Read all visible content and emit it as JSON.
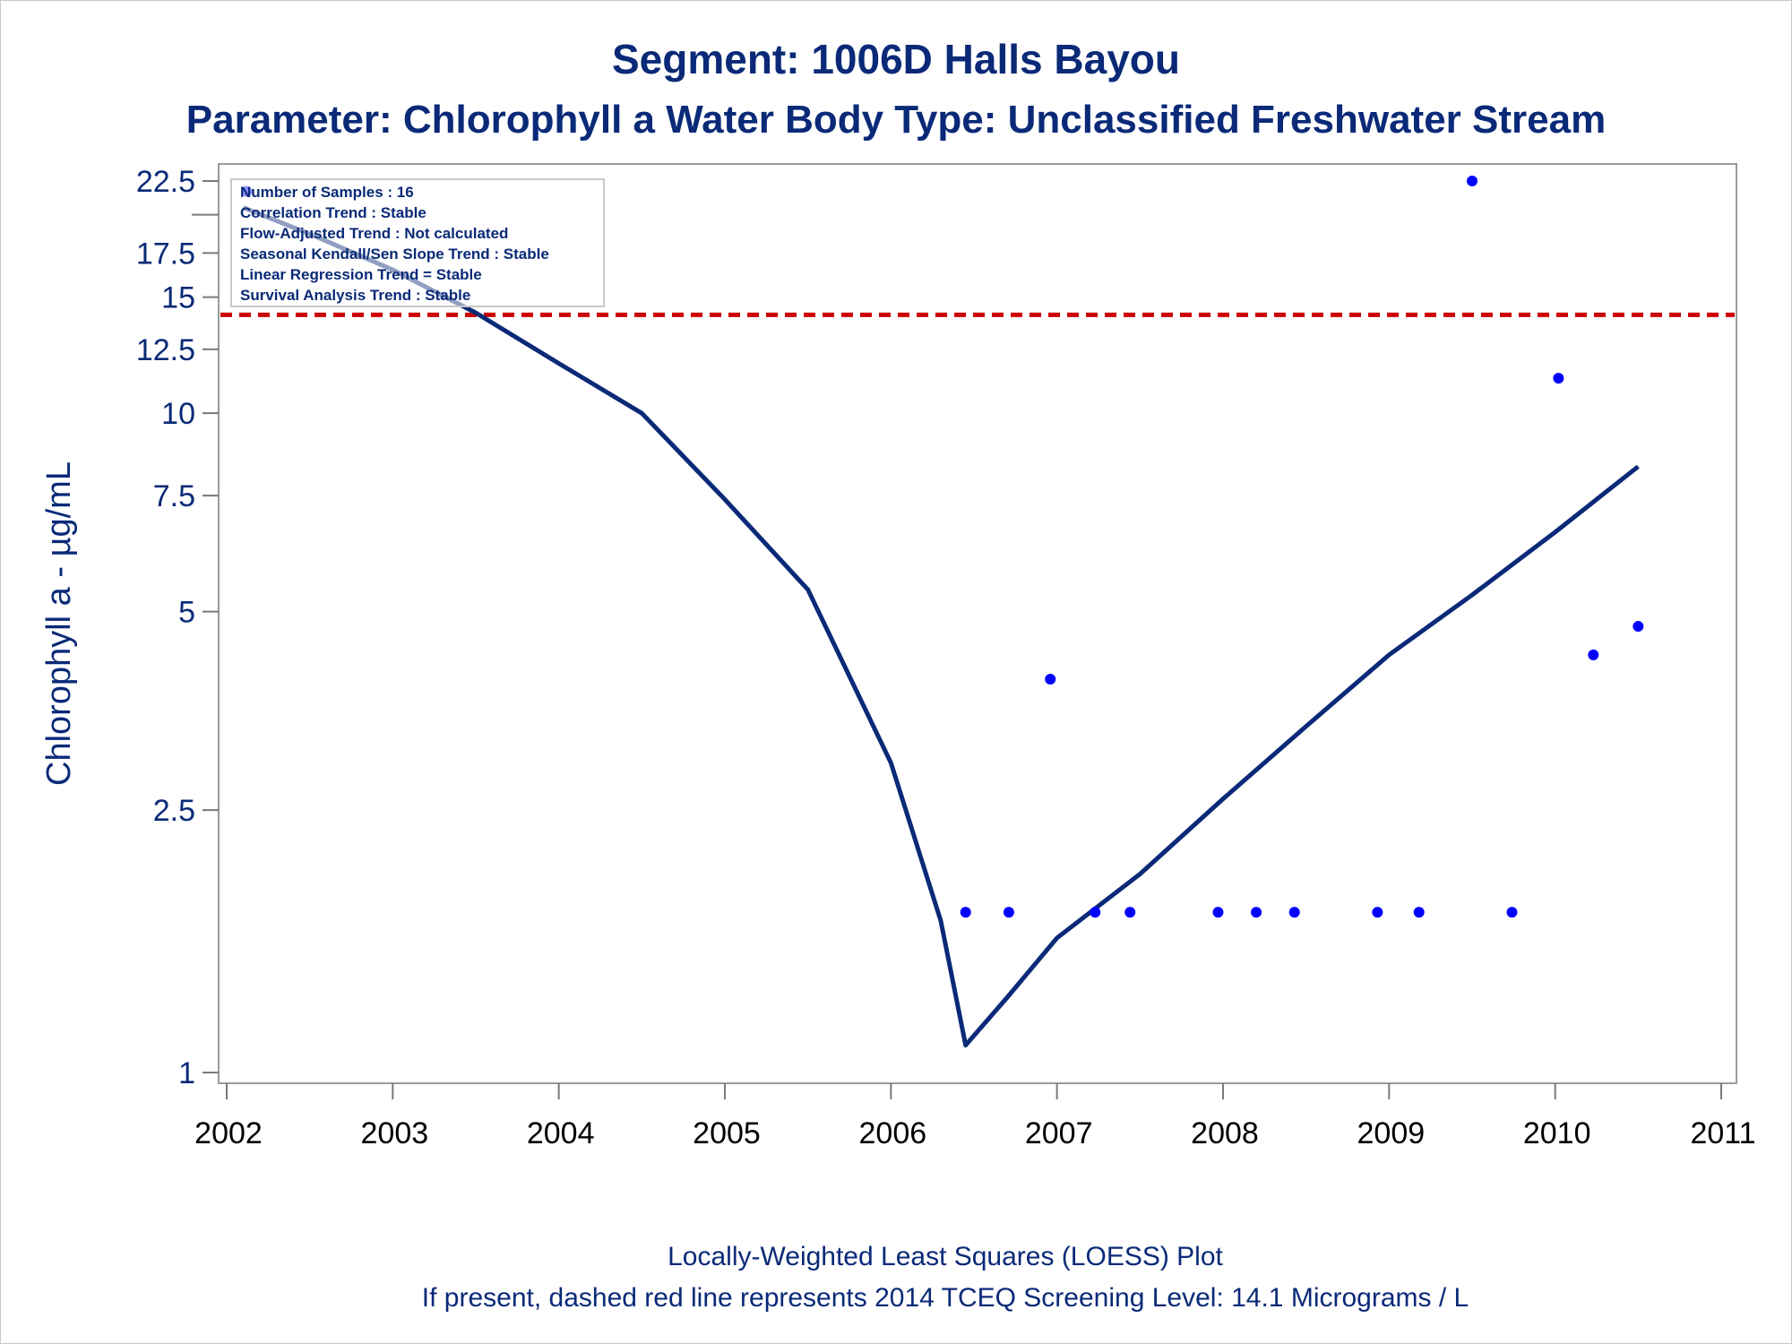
{
  "chart_data": {
    "type": "scatter",
    "title": "Segment: 1006D  Halls Bayou",
    "subtitle": "Parameter: Chlorophyll a   Water Body Type: Unclassified Freshwater Stream",
    "ylabel": "Chlorophyll a -  µg/mL",
    "xlabel": "",
    "x_ticks": [
      "2002",
      "2003",
      "2004",
      "2005",
      "2006",
      "2007",
      "2008",
      "2009",
      "2010",
      "2011"
    ],
    "y_ticks": [
      "22.5",
      "17.5",
      "15",
      "12.5",
      "10",
      "7.5",
      "5",
      "2.5",
      "1"
    ],
    "y_tick_values": [
      22.5,
      17.5,
      15,
      12.5,
      10,
      7.5,
      5,
      2.5,
      1
    ],
    "y_minor_tick_values": [
      20
    ],
    "y_scale": "log",
    "xlim": [
      2002,
      2011
    ],
    "ylim": [
      1,
      22.5
    ],
    "grid": false,
    "series": [
      {
        "type": "scatter",
        "color": "#0000ff",
        "points": [
          [
            2002.12,
            21.7
          ],
          [
            2006.45,
            1.75
          ],
          [
            2006.71,
            1.75
          ],
          [
            2006.96,
            3.95
          ],
          [
            2007.23,
            1.75
          ],
          [
            2007.44,
            1.75
          ],
          [
            2007.97,
            1.75
          ],
          [
            2008.2,
            1.75
          ],
          [
            2008.43,
            1.75
          ],
          [
            2008.93,
            1.75
          ],
          [
            2009.18,
            1.75
          ],
          [
            2009.5,
            22.5
          ],
          [
            2009.74,
            1.75
          ],
          [
            2010.02,
            11.3
          ],
          [
            2010.23,
            4.3
          ],
          [
            2010.5,
            4.75
          ]
        ]
      },
      {
        "type": "line",
        "color": "#0a2a78",
        "points": [
          [
            2002.1,
            20.5
          ],
          [
            2002.5,
            18.7
          ],
          [
            2003.0,
            16.5
          ],
          [
            2003.5,
            14.2
          ],
          [
            2004.0,
            11.9
          ],
          [
            2004.5,
            10.0
          ],
          [
            2005.0,
            7.4
          ],
          [
            2005.5,
            5.4
          ],
          [
            2006.0,
            2.95
          ],
          [
            2006.3,
            1.7
          ],
          [
            2006.45,
            1.1
          ],
          [
            2006.7,
            1.3
          ],
          [
            2007.0,
            1.6
          ],
          [
            2007.5,
            2.0
          ],
          [
            2008.0,
            2.6
          ],
          [
            2008.5,
            3.35
          ],
          [
            2009.0,
            4.3
          ],
          [
            2009.5,
            5.3
          ],
          [
            2010.0,
            6.6
          ],
          [
            2010.5,
            8.3
          ]
        ]
      },
      {
        "type": "hline",
        "color": "#cc0000",
        "style": "dashed",
        "y": 14.1
      }
    ],
    "inset_legend": [
      "Number of Samples : 16",
      "Correlation Trend : Stable",
      "Flow-Adjusted Trend : Not calculated",
      "Seasonal Kendall/Sen Slope Trend : Stable",
      "Linear Regression Trend = Stable",
      "Survival Analysis Trend : Stable"
    ],
    "footnotes": [
      "Locally-Weighted Least Squares (LOESS) Plot",
      "If present, dashed red line represents 2014 TCEQ Screening Level: 14.1 Micrograms / L"
    ]
  }
}
